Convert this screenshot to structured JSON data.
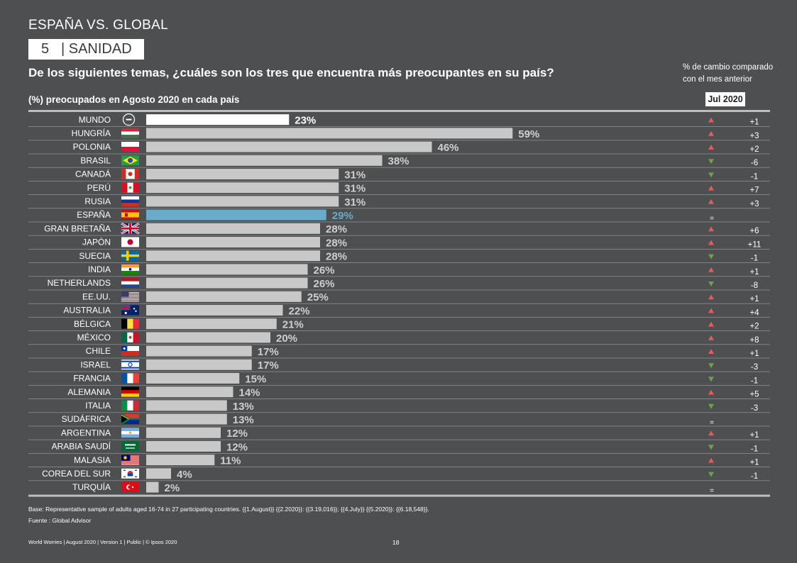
{
  "header": {
    "supertitle": "ESPAÑA VS. GLOBAL",
    "section_number": "5",
    "section_label": "| SANIDAD",
    "question": "De los siguientes temas, ¿cuáles son los tres que encuentra más preocupantes  en su país?",
    "subtitle": "(%) preocupados en Agosto  2020 en cada país",
    "change_note_line1": "% de cambio comparado",
    "change_note_line2": "con el mes anterior",
    "month_label": "Jul 2020"
  },
  "chart_data": {
    "type": "bar",
    "orientation": "horizontal",
    "categories": [
      "MUNDO",
      "HUNGRÍA",
      "POLONIA",
      "BRASIL",
      "CANADÁ",
      "PERÚ",
      "RUSIA",
      "ESPAÑA",
      "GRAN BRETAÑA",
      "JAPÓN",
      "SUECIA",
      "INDIA",
      "NETHERLANDS",
      "EE.UU.",
      "AUSTRALIA",
      "BÉLGICA",
      "MÉXICO",
      "CHILE",
      "ISRAEL",
      "FRANCIA",
      "ALEMANIA",
      "ITALIA",
      "SUDÁFRICA",
      "ARGENTINA",
      "ARABIA SAUDÍ",
      "MALASIA",
      "COREA DEL SUR",
      "TURQUÍA"
    ],
    "values": [
      23,
      59,
      46,
      38,
      31,
      31,
      31,
      29,
      28,
      28,
      28,
      26,
      26,
      25,
      22,
      21,
      20,
      17,
      17,
      15,
      14,
      13,
      13,
      12,
      12,
      11,
      4,
      2
    ],
    "value_labels": [
      "23%",
      "59%",
      "46%",
      "38%",
      "31%",
      "31%",
      "31%",
      "29%",
      "28%",
      "28%",
      "28%",
      "26%",
      "26%",
      "25%",
      "22%",
      "21%",
      "20%",
      "17%",
      "17%",
      "15%",
      "14%",
      "13%",
      "13%",
      "12%",
      "12%",
      "11%",
      "4%",
      "2%"
    ],
    "changes": [
      "+1",
      "+3",
      "+2",
      "-6",
      "-1",
      "+7",
      "+3",
      "=",
      "+6",
      "+11",
      "-1",
      "+1",
      "-8",
      "+1",
      "+4",
      "+2",
      "+8",
      "+1",
      "-3",
      "-1",
      "+5",
      "-3",
      "=",
      "+1",
      "-1",
      "+1",
      "-1",
      "="
    ],
    "trend": [
      "up",
      "up",
      "up",
      "down",
      "down",
      "up",
      "up",
      "none",
      "up",
      "up",
      "down",
      "up",
      "down",
      "up",
      "up",
      "up",
      "up",
      "up",
      "down",
      "down",
      "up",
      "down",
      "none",
      "up",
      "down",
      "up",
      "down",
      "none"
    ],
    "highlight": {
      "MUNDO": "#ffffff",
      "ESPAÑA": "#6aabc9"
    },
    "colors": {
      "bar": "#c8c8c8",
      "world": "#ffffff",
      "spain": "#6aabc9",
      "up": "#e55a5a",
      "down": "#6fa14a",
      "grid": "#bfbfbf",
      "label_grey": "#cfcfcf"
    },
    "xlim": [
      0,
      60
    ]
  },
  "footer": {
    "base_note": "Base: Representative sample of adults aged 16-74 in 27 participating countries. {{1.August}} {{2.2020}}: {{3.19,016}}; {{4.July}} {{5.2020}}: {{6.18,548}}.",
    "source": "Fuente : Global Advisor",
    "imprint": "World Worries  |  August 2020  |  Version 1  |  Public | © Ipsos 2020",
    "page_number": "18"
  }
}
